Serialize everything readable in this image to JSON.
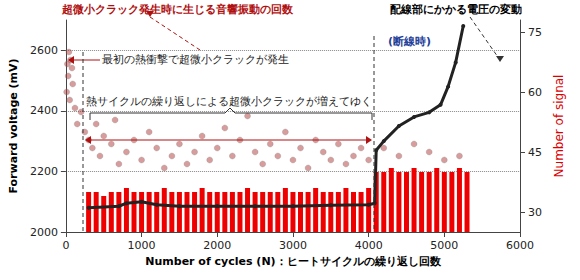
{
  "chart_data": {
    "type": "scatter",
    "x_label": "Number of cycles (N)：ヒートサイクルの繰り返し回数",
    "y_label": "Forward voltage (mV)",
    "y2_label": "Number of signal",
    "xlim": [
      0,
      6000
    ],
    "xticks": [
      0,
      1000,
      2000,
      3000,
      4000,
      5000,
      6000
    ],
    "ylim": [
      2000,
      2700
    ],
    "yticks": [
      2000,
      2200,
      2400,
      2600
    ],
    "y2lim": [
      25,
      78
    ],
    "y2ticks": [
      30,
      45,
      60,
      75
    ],
    "grid": true,
    "annotations": [
      {
        "text": "超微小クラック発生時に生じる音響振動の回数",
        "color": "#b01010"
      },
      {
        "text": "配線部にかかる電圧の変動",
        "color": "#000000"
      },
      {
        "text": "(断線時)",
        "color": "#1f3f99"
      },
      {
        "text": "最初の熱衝撃で超微小クラックが発生",
        "color": "#222222"
      },
      {
        "text": "熱サイクルの繰り返しによる超微小クラックが増えてゆく",
        "color": "#222222"
      }
    ],
    "series": [
      {
        "type": "bar",
        "axis": "y2",
        "color": "#ee0000",
        "x": [
          300,
          400,
          500,
          600,
          700,
          800,
          900,
          1000,
          1100,
          1200,
          1300,
          1400,
          1500,
          1600,
          1700,
          1800,
          1900,
          2000,
          2100,
          2200,
          2300,
          2400,
          2500,
          2600,
          2700,
          2800,
          2900,
          3000,
          3100,
          3200,
          3300,
          3400,
          3500,
          3600,
          3700,
          3800,
          3900,
          4000,
          4100,
          4200,
          4300,
          4400,
          4500,
          4600,
          4700,
          4800,
          4900,
          5000,
          5100,
          5200,
          5300
        ],
        "values": [
          35,
          35,
          34,
          35,
          35,
          36,
          35,
          35,
          35,
          35,
          36,
          35,
          35,
          35,
          35,
          36,
          35,
          35,
          35,
          35,
          35,
          36,
          35,
          35,
          35,
          35,
          36,
          35,
          35,
          35,
          36,
          35,
          35,
          35,
          36,
          35,
          35,
          36,
          40,
          40,
          41,
          40,
          40,
          41,
          40,
          40,
          41,
          40,
          40,
          41,
          40
        ]
      },
      {
        "type": "scatter",
        "axis": "y2",
        "color": "#b03a3a",
        "marker": "circle",
        "x": [
          20,
          40,
          60,
          80,
          30,
          10,
          50,
          90,
          120,
          150,
          200,
          250,
          300,
          350,
          400,
          450,
          500,
          600,
          650,
          700,
          800,
          900,
          1000,
          1100,
          1200,
          1300,
          1400,
          1500,
          1600,
          1700,
          1800,
          1900,
          2000,
          2100,
          2200,
          2300,
          2400,
          2500,
          2600,
          2700,
          2800,
          2900,
          3000,
          3100,
          3200,
          3300,
          3400,
          3500,
          3600,
          3700,
          3800,
          3900,
          4000,
          4200,
          4400,
          4600,
          4800,
          5000,
          5200
        ],
        "values": [
          67,
          70,
          68,
          66,
          64,
          60,
          58,
          62,
          56,
          52,
          55,
          50,
          48,
          46,
          52,
          44,
          49,
          47,
          53,
          42,
          45,
          48,
          43,
          50,
          46,
          41,
          44,
          47,
          42,
          45,
          49,
          43,
          46,
          51,
          44,
          48,
          54,
          45,
          42,
          47,
          44,
          50,
          43,
          46,
          41,
          48,
          45,
          43,
          47,
          42,
          44,
          46,
          43,
          46,
          44,
          47,
          45,
          43,
          44
        ]
      },
      {
        "type": "line",
        "axis": "y",
        "color": "#222222",
        "x": [
          300,
          700,
          800,
          1000,
          1200,
          1500,
          2000,
          2500,
          3000,
          3500,
          4000,
          4080,
          4100,
          4200,
          4400,
          4600,
          4800,
          4950,
          5050,
          5150,
          5250
        ],
        "values": [
          2080,
          2085,
          2095,
          2100,
          2090,
          2085,
          2085,
          2085,
          2085,
          2088,
          2090,
          2095,
          2270,
          2300,
          2350,
          2380,
          2395,
          2420,
          2480,
          2560,
          2680
        ]
      }
    ]
  }
}
